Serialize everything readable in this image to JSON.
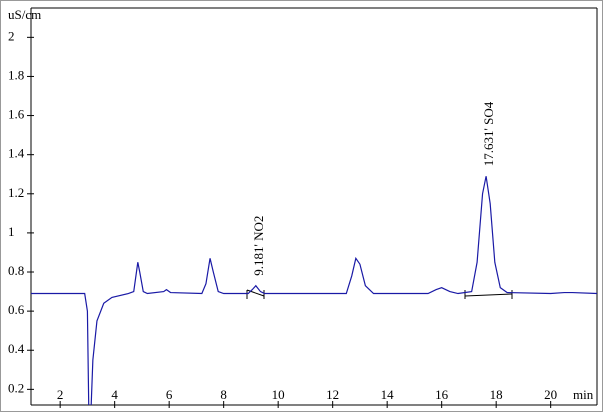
{
  "chart_data": {
    "type": "line",
    "y_label": "uS/cm",
    "x_label": "min",
    "annotations": [
      {
        "text": "9.181' NO2",
        "x": 9.18,
        "y": 0.73
      },
      {
        "text": "17.631' SO4",
        "x": 17.63,
        "y": 1.29
      }
    ],
    "xlim": [
      0.93,
      21.7
    ],
    "ylim": [
      0.12,
      2.15
    ],
    "xticks": [
      2,
      4,
      6,
      8,
      10,
      12,
      14,
      16,
      18,
      20
    ],
    "yticks": [
      0.2,
      0.4,
      0.6,
      0.8,
      1,
      1.2,
      1.4,
      1.6,
      1.8,
      2
    ],
    "series": [
      {
        "color": "#1a1aa6",
        "x": [
          0.93,
          2.9,
          3.0,
          3.05,
          3.12,
          3.2,
          3.35,
          3.6,
          3.9,
          4.5,
          4.7,
          4.8,
          4.85,
          4.92,
          5.05,
          5.2,
          5.8,
          5.9,
          6.05,
          7.2,
          7.35,
          7.5,
          7.62,
          7.8,
          8.0,
          8.9,
          9.05,
          9.18,
          9.35,
          9.5,
          12.5,
          12.7,
          12.85,
          13.0,
          13.2,
          13.5,
          15.5,
          15.8,
          16.0,
          16.3,
          16.6,
          17.1,
          17.3,
          17.5,
          17.63,
          17.78,
          17.95,
          18.15,
          18.4,
          20.0,
          20.5,
          20.8,
          21.7
        ],
        "values": [
          0.69,
          0.69,
          0.6,
          0.1,
          0.05,
          0.35,
          0.55,
          0.64,
          0.67,
          0.69,
          0.7,
          0.8,
          0.85,
          0.8,
          0.7,
          0.69,
          0.7,
          0.71,
          0.695,
          0.69,
          0.74,
          0.87,
          0.8,
          0.7,
          0.69,
          0.69,
          0.71,
          0.73,
          0.7,
          0.69,
          0.69,
          0.78,
          0.87,
          0.84,
          0.73,
          0.69,
          0.69,
          0.71,
          0.72,
          0.7,
          0.69,
          0.7,
          0.85,
          1.2,
          1.29,
          1.15,
          0.85,
          0.72,
          0.695,
          0.69,
          0.695,
          0.695,
          0.69
        ]
      }
    ]
  }
}
